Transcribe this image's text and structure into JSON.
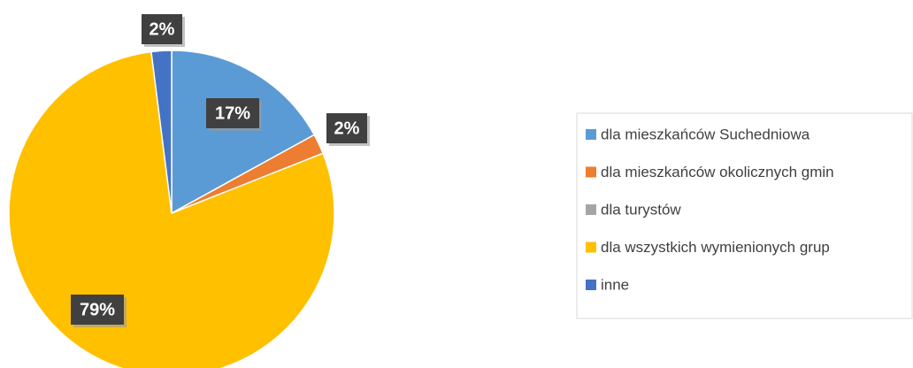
{
  "chart_data": {
    "type": "pie",
    "categories": [
      "dla mieszkańców Suchedniowa",
      "dla mieszkańców okolicznych gmin",
      "dla turystów",
      "dla wszystkich wymienionych grup",
      "inne"
    ],
    "values": [
      17,
      2,
      0,
      79,
      2
    ],
    "value_labels": [
      "17%",
      "2%",
      null,
      "79%",
      "2%"
    ],
    "colors": [
      "#5b9bd5",
      "#ed7d31",
      "#a5a5a5",
      "#ffc000",
      "#4472c4"
    ],
    "legend": "right"
  }
}
